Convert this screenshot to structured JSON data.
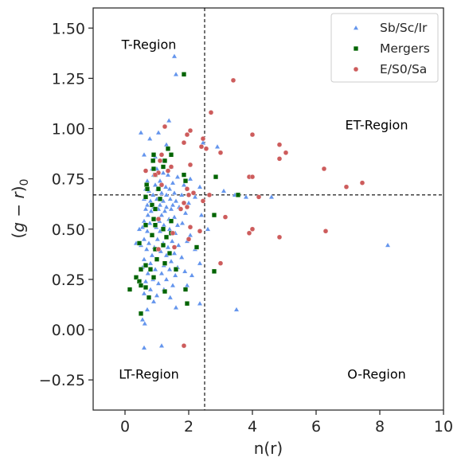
{
  "chart_data": {
    "type": "scatter",
    "xlabel": "n(r)",
    "ylabel_parts": [
      "(",
      "g",
      " − ",
      "r",
      ")",
      "0"
    ],
    "xlim": [
      -1,
      10
    ],
    "ylim": [
      -0.4,
      1.6
    ],
    "xticks": [
      0,
      2,
      4,
      6,
      8,
      10
    ],
    "xtick_labels": [
      "0",
      "2",
      "4",
      "6",
      "8",
      "10"
    ],
    "yticks": [
      -0.25,
      0.0,
      0.25,
      0.5,
      0.75,
      1.0,
      1.25,
      1.5
    ],
    "ytick_labels": [
      "−0.25",
      "0.00",
      "0.25",
      "0.50",
      "0.75",
      "1.00",
      "1.25",
      "1.50"
    ],
    "grid": false,
    "legend_position": "top-right",
    "reference_lines": {
      "vertical_x": 2.5,
      "horizontal_y": 0.67
    },
    "annotations": [
      {
        "text": "T-Region",
        "x": 0.75,
        "y": 1.42
      },
      {
        "text": "ET-Region",
        "x": 7.9,
        "y": 1.02
      },
      {
        "text": "LT-Region",
        "x": 0.75,
        "y": -0.22
      },
      {
        "text": "O-Region",
        "x": 7.9,
        "y": -0.22
      }
    ],
    "series": [
      {
        "name": "Sb/Sc/Ir",
        "marker": "triangle",
        "color": "#6495ed",
        "points": [
          [
            1.55,
            1.36
          ],
          [
            1.6,
            1.27
          ],
          [
            1.38,
            1.04
          ],
          [
            0.5,
            0.98
          ],
          [
            1.05,
            0.98
          ],
          [
            0.78,
            0.95
          ],
          [
            1.3,
            0.92
          ],
          [
            2.45,
            0.93
          ],
          [
            2.9,
            0.91
          ],
          [
            0.6,
            0.87
          ],
          [
            0.95,
            0.86
          ],
          [
            1.15,
            0.84
          ],
          [
            1.45,
            0.81
          ],
          [
            0.85,
            0.8
          ],
          [
            1.0,
            0.8
          ],
          [
            1.2,
            0.78
          ],
          [
            0.9,
            0.77
          ],
          [
            1.35,
            0.77
          ],
          [
            1.65,
            0.76
          ],
          [
            2.05,
            0.75
          ],
          [
            0.7,
            0.74
          ],
          [
            1.1,
            0.74
          ],
          [
            1.5,
            0.73
          ],
          [
            0.95,
            0.72
          ],
          [
            1.28,
            0.71
          ],
          [
            0.65,
            0.7
          ],
          [
            1.02,
            0.7
          ],
          [
            1.4,
            0.7
          ],
          [
            1.85,
            0.72
          ],
          [
            2.35,
            0.71
          ],
          [
            3.1,
            0.69
          ],
          [
            0.75,
            0.69
          ],
          [
            1.15,
            0.68
          ],
          [
            1.55,
            0.68
          ],
          [
            0.88,
            0.67
          ],
          [
            1.3,
            0.67
          ],
          [
            1.78,
            0.67
          ],
          [
            2.2,
            0.66
          ],
          [
            3.45,
            0.67
          ],
          [
            3.8,
            0.66
          ],
          [
            4.6,
            0.66
          ],
          [
            0.6,
            0.65
          ],
          [
            1.0,
            0.65
          ],
          [
            1.42,
            0.65
          ],
          [
            0.8,
            0.64
          ],
          [
            1.2,
            0.64
          ],
          [
            1.6,
            0.64
          ],
          [
            2.0,
            0.63
          ],
          [
            0.7,
            0.62
          ],
          [
            1.1,
            0.62
          ],
          [
            1.5,
            0.62
          ],
          [
            0.9,
            0.61
          ],
          [
            1.3,
            0.61
          ],
          [
            1.7,
            0.61
          ],
          [
            0.65,
            0.6
          ],
          [
            1.05,
            0.6
          ],
          [
            1.45,
            0.6
          ],
          [
            0.82,
            0.59
          ],
          [
            1.25,
            0.59
          ],
          [
            1.9,
            0.58
          ],
          [
            2.4,
            0.57
          ],
          [
            0.72,
            0.57
          ],
          [
            1.15,
            0.57
          ],
          [
            1.55,
            0.56
          ],
          [
            0.95,
            0.55
          ],
          [
            1.38,
            0.55
          ],
          [
            0.6,
            0.54
          ],
          [
            1.08,
            0.54
          ],
          [
            1.8,
            0.53
          ],
          [
            0.78,
            0.53
          ],
          [
            1.22,
            0.52
          ],
          [
            1.65,
            0.52
          ],
          [
            0.55,
            0.51
          ],
          [
            0.98,
            0.51
          ],
          [
            1.4,
            0.5
          ],
          [
            0.7,
            0.49
          ],
          [
            1.1,
            0.49
          ],
          [
            1.58,
            0.48
          ],
          [
            2.05,
            0.47
          ],
          [
            0.85,
            0.47
          ],
          [
            1.3,
            0.46
          ],
          [
            0.6,
            0.45
          ],
          [
            1.02,
            0.45
          ],
          [
            1.48,
            0.44
          ],
          [
            1.95,
            0.44
          ],
          [
            0.75,
            0.43
          ],
          [
            1.2,
            0.43
          ],
          [
            1.68,
            0.42
          ],
          [
            0.5,
            0.42
          ],
          [
            0.92,
            0.41
          ],
          [
            1.35,
            0.41
          ],
          [
            2.2,
            0.4
          ],
          [
            0.68,
            0.4
          ],
          [
            1.12,
            0.39
          ],
          [
            1.55,
            0.38
          ],
          [
            0.85,
            0.37
          ],
          [
            1.3,
            0.37
          ],
          [
            1.78,
            0.36
          ],
          [
            0.6,
            0.35
          ],
          [
            1.0,
            0.35
          ],
          [
            1.45,
            0.34
          ],
          [
            2.35,
            0.33
          ],
          [
            0.8,
            0.33
          ],
          [
            1.22,
            0.32
          ],
          [
            1.65,
            0.31
          ],
          [
            0.55,
            0.31
          ],
          [
            0.95,
            0.3
          ],
          [
            1.4,
            0.3
          ],
          [
            1.88,
            0.29
          ],
          [
            0.72,
            0.28
          ],
          [
            1.15,
            0.28
          ],
          [
            1.58,
            0.27
          ],
          [
            2.1,
            0.27
          ],
          [
            0.88,
            0.25
          ],
          [
            1.3,
            0.25
          ],
          [
            0.65,
            0.24
          ],
          [
            1.05,
            0.23
          ],
          [
            1.5,
            0.22
          ],
          [
            1.95,
            0.22
          ],
          [
            0.8,
            0.2
          ],
          [
            1.22,
            0.2
          ],
          [
            0.6,
            0.18
          ],
          [
            1.0,
            0.17
          ],
          [
            1.42,
            0.16
          ],
          [
            2.35,
            0.13
          ],
          [
            0.9,
            0.14
          ],
          [
            1.6,
            0.11
          ],
          [
            3.5,
            0.1
          ],
          [
            0.7,
            0.1
          ],
          [
            0.55,
            0.05
          ],
          [
            0.62,
            0.03
          ],
          [
            0.6,
            -0.09
          ],
          [
            1.15,
            -0.08
          ],
          [
            8.25,
            0.42
          ],
          [
            0.45,
            0.5
          ],
          [
            0.35,
            0.43
          ],
          [
            2.6,
            0.5
          ]
        ]
      },
      {
        "name": "Mergers",
        "marker": "square",
        "color": "#006400",
        "points": [
          [
            1.85,
            1.27
          ],
          [
            1.35,
            0.9
          ],
          [
            0.9,
            0.87
          ],
          [
            1.45,
            0.87
          ],
          [
            1.25,
            0.84
          ],
          [
            0.88,
            0.84
          ],
          [
            1.2,
            0.81
          ],
          [
            0.9,
            0.8
          ],
          [
            1.85,
            0.77
          ],
          [
            0.95,
            0.77
          ],
          [
            2.85,
            0.76
          ],
          [
            1.9,
            0.74
          ],
          [
            0.68,
            0.72
          ],
          [
            0.7,
            0.7
          ],
          [
            1.05,
            0.7
          ],
          [
            3.55,
            0.67
          ],
          [
            0.65,
            0.66
          ],
          [
            1.1,
            0.65
          ],
          [
            0.85,
            0.62
          ],
          [
            0.95,
            0.6
          ],
          [
            2.8,
            0.57
          ],
          [
            0.9,
            0.55
          ],
          [
            1.45,
            0.54
          ],
          [
            0.95,
            0.52
          ],
          [
            0.65,
            0.52
          ],
          [
            1.2,
            0.5
          ],
          [
            1.45,
            0.48
          ],
          [
            0.85,
            0.47
          ],
          [
            1.3,
            0.46
          ],
          [
            0.45,
            0.43
          ],
          [
            1.2,
            0.42
          ],
          [
            2.25,
            0.41
          ],
          [
            0.95,
            0.4
          ],
          [
            1.4,
            0.38
          ],
          [
            1.0,
            0.35
          ],
          [
            1.25,
            0.33
          ],
          [
            0.65,
            0.32
          ],
          [
            0.5,
            0.3
          ],
          [
            1.6,
            0.3
          ],
          [
            0.8,
            0.3
          ],
          [
            2.8,
            0.29
          ],
          [
            0.9,
            0.26
          ],
          [
            0.35,
            0.26
          ],
          [
            0.45,
            0.24
          ],
          [
            0.5,
            0.22
          ],
          [
            0.65,
            0.21
          ],
          [
            0.15,
            0.2
          ],
          [
            1.9,
            0.2
          ],
          [
            1.25,
            0.19
          ],
          [
            0.75,
            0.16
          ],
          [
            1.95,
            0.13
          ],
          [
            0.5,
            0.08
          ]
        ]
      },
      {
        "name": "E/S0/Sa",
        "marker": "circle",
        "color": "#cd5c5c",
        "points": [
          [
            3.4,
            1.24
          ],
          [
            2.7,
            1.08
          ],
          [
            1.25,
            1.01
          ],
          [
            2.05,
            0.99
          ],
          [
            1.95,
            0.97
          ],
          [
            4.0,
            0.97
          ],
          [
            2.45,
            0.95
          ],
          [
            1.85,
            0.93
          ],
          [
            4.85,
            0.92
          ],
          [
            2.4,
            0.91
          ],
          [
            2.55,
            0.9
          ],
          [
            5.05,
            0.88
          ],
          [
            3.0,
            0.88
          ],
          [
            1.15,
            0.87
          ],
          [
            4.85,
            0.85
          ],
          [
            1.1,
            0.84
          ],
          [
            2.05,
            0.82
          ],
          [
            1.45,
            0.81
          ],
          [
            6.25,
            0.8
          ],
          [
            0.65,
            0.79
          ],
          [
            1.35,
            0.79
          ],
          [
            1.05,
            0.78
          ],
          [
            0.95,
            0.77
          ],
          [
            3.9,
            0.76
          ],
          [
            4.0,
            0.76
          ],
          [
            7.45,
            0.73
          ],
          [
            1.15,
            0.72
          ],
          [
            6.95,
            0.71
          ],
          [
            1.95,
            0.7
          ],
          [
            2.15,
            0.68
          ],
          [
            2.65,
            0.67
          ],
          [
            2.0,
            0.67
          ],
          [
            4.2,
            0.66
          ],
          [
            2.45,
            0.64
          ],
          [
            1.85,
            0.63
          ],
          [
            1.95,
            0.61
          ],
          [
            1.75,
            0.6
          ],
          [
            3.15,
            0.56
          ],
          [
            1.05,
            0.55
          ],
          [
            2.05,
            0.51
          ],
          [
            4.0,
            0.5
          ],
          [
            3.9,
            0.48
          ],
          [
            2.35,
            0.49
          ],
          [
            6.3,
            0.49
          ],
          [
            1.5,
            0.48
          ],
          [
            4.85,
            0.46
          ],
          [
            2.0,
            0.45
          ],
          [
            1.55,
            0.41
          ],
          [
            3.0,
            0.33
          ],
          [
            1.05,
            0.4
          ],
          [
            1.85,
            -0.08
          ]
        ]
      }
    ]
  }
}
